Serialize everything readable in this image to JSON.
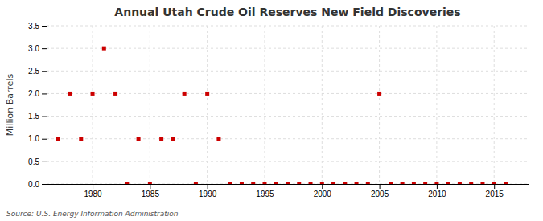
{
  "chart_data": {
    "type": "scatter",
    "title": "Annual Utah Crude Oil Reserves New Field Discoveries",
    "ylabel": "Million Barrels",
    "annotations": [
      "Source: U.S. Energy Information Administration"
    ],
    "x": [
      1977,
      1978,
      1979,
      1980,
      1981,
      1982,
      1983,
      1984,
      1985,
      1986,
      1987,
      1988,
      1989,
      1990,
      1991,
      1992,
      1993,
      1994,
      1995,
      1996,
      1997,
      1998,
      1999,
      2000,
      2001,
      2002,
      2003,
      2004,
      2005,
      2006,
      2007,
      2008,
      2009,
      2010,
      2011,
      2012,
      2013,
      2014,
      2015,
      2016
    ],
    "values": [
      1.0,
      2.0,
      1.0,
      2.0,
      3.0,
      2.0,
      0.0,
      1.0,
      0.0,
      1.0,
      1.0,
      2.0,
      0.0,
      2.0,
      1.0,
      0.0,
      0.0,
      0.0,
      0.0,
      0.0,
      0.0,
      0.0,
      0.0,
      0.0,
      0.0,
      0.0,
      0.0,
      0.0,
      2.0,
      0.0,
      0.0,
      0.0,
      0.0,
      0.0,
      0.0,
      0.0,
      0.0,
      0.0,
      0.0,
      0.0
    ],
    "color": "#cc0000",
    "marker": "square",
    "xlim": [
      1976,
      2018
    ],
    "ylim": [
      0.0,
      3.5
    ],
    "xticks": [
      1980,
      1985,
      1990,
      1995,
      2000,
      2005,
      2010,
      2015
    ],
    "yticks": [
      {
        "value": 0,
        "label": "0.0"
      },
      0.5,
      {
        "value": 1,
        "label": "1.0"
      },
      1.5,
      {
        "value": 2,
        "label": "2.0"
      },
      2.5,
      {
        "value": 3,
        "label": "3.0"
      },
      3.5
    ],
    "grid": true
  }
}
